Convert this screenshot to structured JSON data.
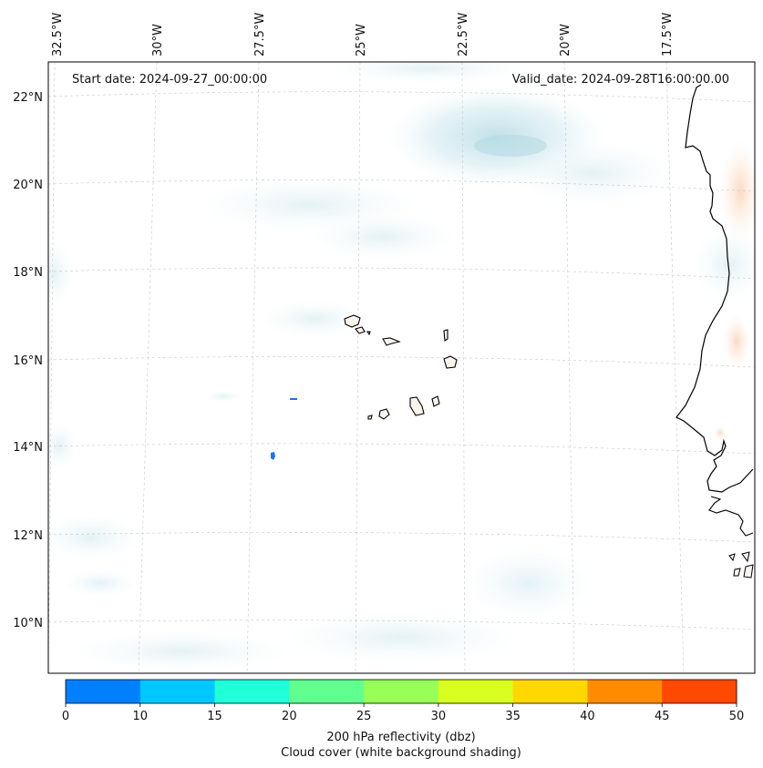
{
  "map": {
    "start_date_text": "Start date: 2024-09-27_00:00:00",
    "valid_date_text": "Valid_date: 2024-09-28T16:00:00.00",
    "lon_labels": [
      "32.5°W",
      "30°W",
      "27.5°W",
      "25°W",
      "22.5°W",
      "20°W",
      "17.5°W"
    ],
    "lat_labels": [
      "22°N",
      "20°N",
      "18°N",
      "16°N",
      "14°N",
      "12°N",
      "10°N"
    ],
    "echo_points": [
      {
        "name": "echo-small-1",
        "color": "#1a73ff"
      },
      {
        "name": "echo-small-2",
        "color": "#1a73ff"
      }
    ]
  },
  "colorbar": {
    "colors": [
      "#0080ff",
      "#00c8ff",
      "#20ffd8",
      "#60ff90",
      "#98ff58",
      "#d8ff20",
      "#ffd800",
      "#ff8c00",
      "#ff4800"
    ],
    "ticks": [
      "0",
      "10",
      "15",
      "20",
      "25",
      "30",
      "35",
      "40",
      "45",
      "50"
    ],
    "label_line1": "200 hPa reflectivity (dbz)",
    "label_line2": "Cloud cover (white background shading)"
  }
}
